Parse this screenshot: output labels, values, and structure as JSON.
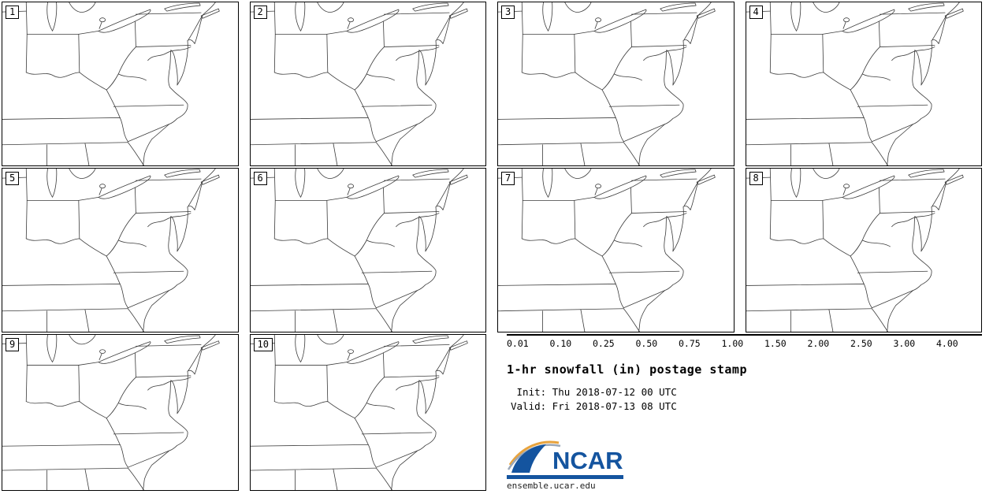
{
  "panels": [
    {
      "label": "1"
    },
    {
      "label": "2"
    },
    {
      "label": "3"
    },
    {
      "label": "4"
    },
    {
      "label": "5"
    },
    {
      "label": "6"
    },
    {
      "label": "7"
    },
    {
      "label": "8"
    },
    {
      "label": "9"
    },
    {
      "label": "10"
    }
  ],
  "colorbar": {
    "ticks": [
      "0.01",
      "0.10",
      "0.25",
      "0.50",
      "0.75",
      "1.00",
      "1.50",
      "2.00",
      "2.50",
      "3.00",
      "4.00"
    ],
    "colors": [
      "#e6e6e6",
      "#9c9c9c",
      "#d6e0f6",
      "#b0c3ee",
      "#7e97e8",
      "#2433cd",
      "#12a41b",
      "#6be84d",
      "#f7f556",
      "#f9a01b",
      "#ed1b15",
      "#fbaef2"
    ]
  },
  "info": {
    "title": "1-hr snowfall (in) postage stamp",
    "init_line": " Init: Thu 2018-07-12 00 UTC",
    "valid_line": "Valid: Fri 2018-07-13 08 UTC"
  },
  "logo": {
    "name": "NCAR",
    "url": "ensemble.ucar.edu",
    "color": "#14549f"
  }
}
